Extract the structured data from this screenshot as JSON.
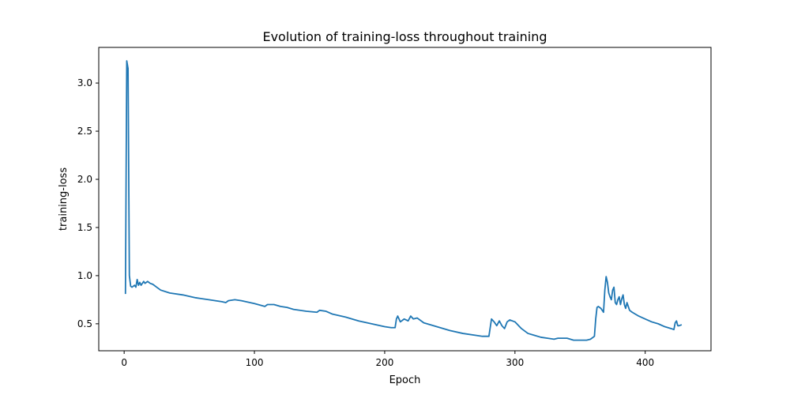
{
  "chart_data": {
    "type": "line",
    "title": "Evolution of training-loss throughout training",
    "xlabel": "Epoch",
    "ylabel": "training-loss",
    "xlim": [
      -19.5,
      450.5
    ],
    "ylim": [
      0.22,
      3.37
    ],
    "xticks": [
      0,
      100,
      200,
      300,
      400
    ],
    "yticks": [
      0.5,
      1.0,
      1.5,
      2.0,
      2.5,
      3.0
    ],
    "ytick_labels": [
      "0.5",
      "1.0",
      "1.5",
      "2.0",
      "2.5",
      "3.0"
    ],
    "grid": false,
    "series": [
      {
        "color": "#1f77b4",
        "x": [
          1,
          2,
          3,
          4,
          5,
          6,
          7,
          8,
          9,
          10,
          11,
          12,
          13,
          14,
          15,
          16,
          18,
          20,
          22,
          25,
          28,
          35,
          45,
          55,
          65,
          75,
          78,
          80,
          85,
          90,
          100,
          108,
          110,
          115,
          120,
          125,
          130,
          140,
          148,
          150,
          155,
          160,
          170,
          180,
          190,
          200,
          205,
          208,
          209,
          210,
          212,
          215,
          218,
          220,
          222,
          225,
          230,
          240,
          250,
          260,
          270,
          275,
          279,
          280,
          282,
          284,
          286,
          288,
          290,
          292,
          294,
          296,
          298,
          300,
          305,
          310,
          315,
          320,
          325,
          330,
          333,
          340,
          345,
          350,
          355,
          358,
          361,
          362,
          363,
          364,
          366,
          368,
          369,
          370,
          371,
          372,
          373,
          374,
          375,
          376,
          377,
          378,
          379,
          380,
          381,
          382,
          383,
          384,
          385,
          386,
          387,
          388,
          390,
          395,
          400,
          405,
          410,
          415,
          420,
          422,
          423,
          424,
          425,
          426,
          428
        ],
        "y": [
          0.81,
          3.23,
          3.15,
          1.0,
          0.89,
          0.88,
          0.89,
          0.9,
          0.88,
          0.96,
          0.9,
          0.93,
          0.9,
          0.92,
          0.94,
          0.92,
          0.94,
          0.92,
          0.91,
          0.88,
          0.85,
          0.82,
          0.8,
          0.77,
          0.75,
          0.73,
          0.72,
          0.74,
          0.75,
          0.74,
          0.71,
          0.68,
          0.7,
          0.7,
          0.68,
          0.67,
          0.65,
          0.63,
          0.62,
          0.64,
          0.63,
          0.6,
          0.57,
          0.53,
          0.5,
          0.47,
          0.46,
          0.46,
          0.55,
          0.58,
          0.52,
          0.55,
          0.53,
          0.58,
          0.55,
          0.56,
          0.51,
          0.47,
          0.43,
          0.4,
          0.38,
          0.37,
          0.37,
          0.37,
          0.55,
          0.52,
          0.48,
          0.53,
          0.48,
          0.45,
          0.52,
          0.54,
          0.53,
          0.52,
          0.45,
          0.4,
          0.38,
          0.36,
          0.35,
          0.34,
          0.35,
          0.35,
          0.33,
          0.33,
          0.33,
          0.34,
          0.37,
          0.55,
          0.67,
          0.68,
          0.66,
          0.62,
          0.85,
          0.99,
          0.93,
          0.82,
          0.78,
          0.75,
          0.85,
          0.88,
          0.72,
          0.7,
          0.75,
          0.78,
          0.7,
          0.76,
          0.8,
          0.7,
          0.66,
          0.72,
          0.68,
          0.64,
          0.62,
          0.58,
          0.55,
          0.52,
          0.5,
          0.47,
          0.45,
          0.44,
          0.51,
          0.53,
          0.48,
          0.48,
          0.49
        ]
      }
    ]
  }
}
